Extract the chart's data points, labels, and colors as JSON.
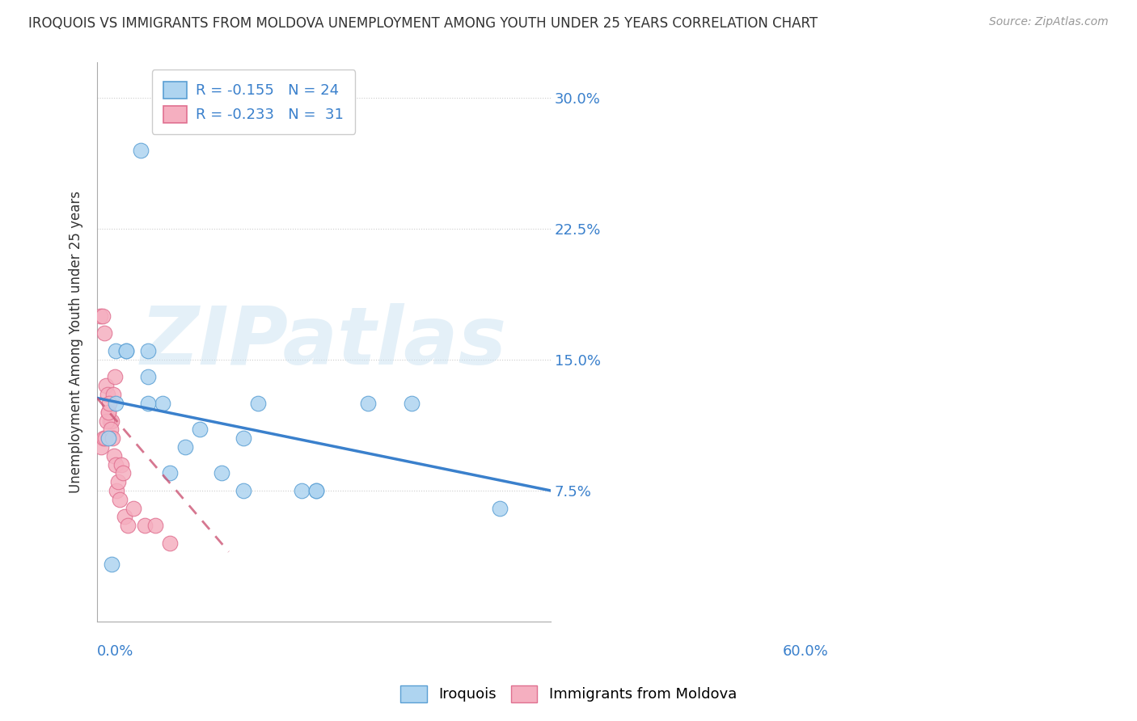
{
  "title": "IROQUOIS VS IMMIGRANTS FROM MOLDOVA UNEMPLOYMENT AMONG YOUTH UNDER 25 YEARS CORRELATION CHART",
  "source": "Source: ZipAtlas.com",
  "ylabel": "Unemployment Among Youth under 25 years",
  "xlim": [
    0.0,
    0.62
  ],
  "ylim": [
    0.0,
    0.32
  ],
  "yticks": [
    0.075,
    0.15,
    0.225,
    0.3
  ],
  "ytick_labels": [
    "7.5%",
    "15.0%",
    "22.5%",
    "30.0%"
  ],
  "iroquois_color": "#aed4f0",
  "iroquois_edge_color": "#5a9fd4",
  "moldova_color": "#f5afc0",
  "moldova_edge_color": "#e07090",
  "iroquois_line_color": "#3a80cc",
  "moldova_line_color": "#cc5575",
  "label_color": "#3a80cc",
  "watermark_text": "ZIPatlas",
  "iroquois_x": [
    0.02,
    0.015,
    0.025,
    0.025,
    0.04,
    0.04,
    0.06,
    0.07,
    0.07,
    0.09,
    0.1,
    0.12,
    0.14,
    0.17,
    0.2,
    0.22,
    0.28,
    0.3,
    0.37,
    0.43,
    0.55,
    0.2,
    0.3,
    0.07
  ],
  "iroquois_y": [
    0.033,
    0.105,
    0.125,
    0.155,
    0.155,
    0.155,
    0.27,
    0.155,
    0.14,
    0.125,
    0.085,
    0.1,
    0.11,
    0.085,
    0.105,
    0.125,
    0.075,
    0.075,
    0.125,
    0.125,
    0.065,
    0.075,
    0.075,
    0.125
  ],
  "moldova_x": [
    0.005,
    0.008,
    0.01,
    0.012,
    0.014,
    0.016,
    0.018,
    0.02,
    0.022,
    0.024,
    0.006,
    0.009,
    0.011,
    0.013,
    0.015,
    0.017,
    0.019,
    0.021,
    0.023,
    0.025,
    0.027,
    0.029,
    0.031,
    0.033,
    0.035,
    0.038,
    0.042,
    0.05,
    0.065,
    0.08,
    0.1
  ],
  "moldova_y": [
    0.175,
    0.175,
    0.165,
    0.135,
    0.13,
    0.12,
    0.115,
    0.115,
    0.13,
    0.14,
    0.1,
    0.105,
    0.105,
    0.115,
    0.12,
    0.125,
    0.11,
    0.105,
    0.095,
    0.09,
    0.075,
    0.08,
    0.07,
    0.09,
    0.085,
    0.06,
    0.055,
    0.065,
    0.055,
    0.055,
    0.045
  ],
  "iro_trendline_x": [
    0.0,
    0.62
  ],
  "iro_trendline_y": [
    0.128,
    0.075
  ],
  "mol_trendline_x": [
    0.0,
    0.18
  ],
  "mol_trendline_y": [
    0.128,
    0.04
  ]
}
